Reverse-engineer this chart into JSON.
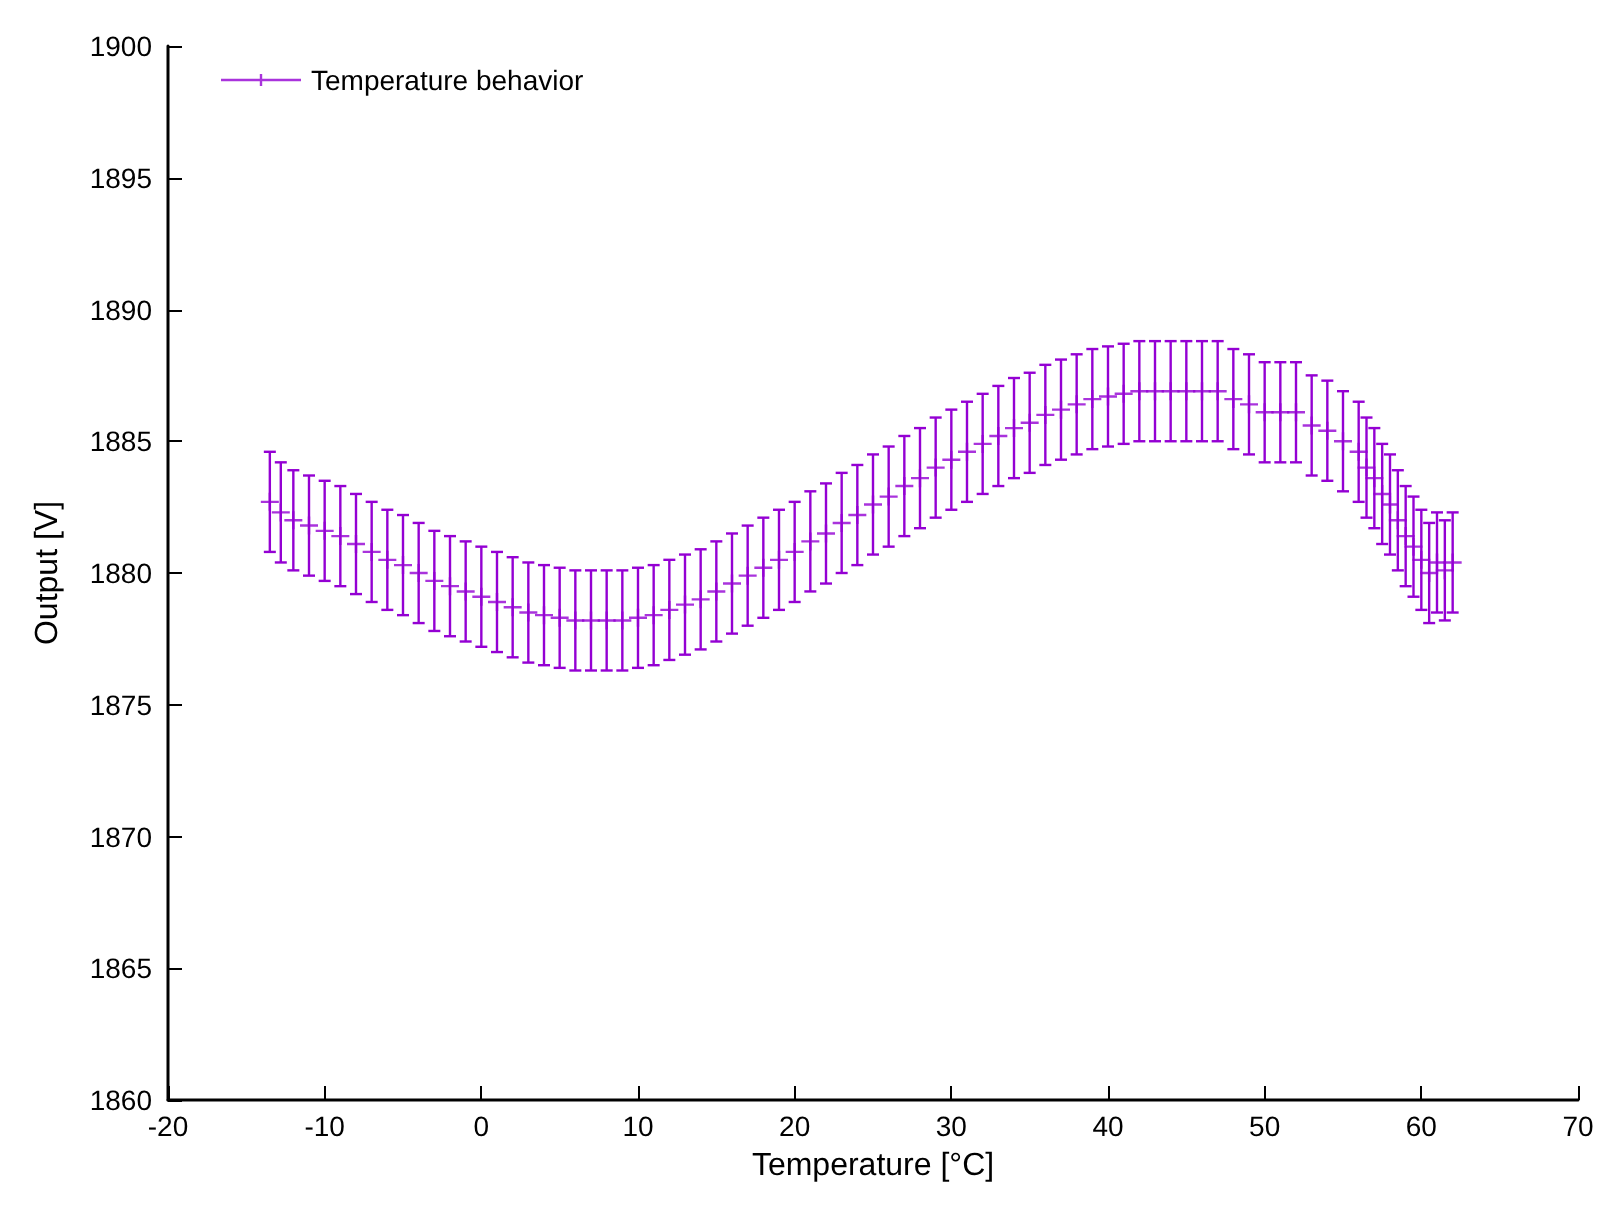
{
  "chart_data": {
    "type": "scatter",
    "xlabel": "Temperature [°C]",
    "ylabel": "Output [V]",
    "xlim": [
      -20,
      70
    ],
    "xticks": [
      -20,
      -10,
      0,
      10,
      20,
      30,
      40,
      50,
      60,
      70
    ],
    "ylim": [
      1860,
      1900
    ],
    "yticks": [
      1860,
      1865,
      1870,
      1875,
      1880,
      1885,
      1890,
      1895,
      1900
    ],
    "grid": false,
    "legend": "top left",
    "marker": "cross",
    "x": [
      -13.5,
      -12.8,
      -12,
      -11,
      -10,
      -9,
      -8,
      -7,
      -6,
      -5,
      -4,
      -3,
      -2,
      -1,
      0,
      1,
      2,
      3,
      4,
      5,
      6,
      7,
      8,
      9,
      10,
      11,
      12,
      13,
      14,
      15,
      16,
      17,
      18,
      19,
      20,
      21,
      22,
      23,
      24,
      25,
      26,
      27,
      28,
      29,
      30,
      31,
      32,
      33,
      34,
      35,
      36,
      37,
      38,
      39,
      40,
      41,
      42,
      43,
      44,
      45,
      46,
      47,
      48,
      49,
      50,
      51,
      52,
      53,
      54,
      55,
      56,
      56.5,
      57,
      57.5,
      58,
      58.5,
      59,
      59.5,
      60,
      60.5,
      61,
      61.5,
      62
    ],
    "series": [
      {
        "name": "Temperature behavior",
        "color": "#9400d3",
        "values": [
          1882.7,
          1882.3,
          1882.0,
          1881.8,
          1881.6,
          1881.4,
          1881.1,
          1880.8,
          1880.5,
          1880.3,
          1880.0,
          1879.7,
          1879.5,
          1879.3,
          1879.1,
          1878.9,
          1878.7,
          1878.5,
          1878.4,
          1878.3,
          1878.2,
          1878.2,
          1878.2,
          1878.2,
          1878.3,
          1878.4,
          1878.6,
          1878.8,
          1879.0,
          1879.3,
          1879.6,
          1879.9,
          1880.2,
          1880.5,
          1880.8,
          1881.2,
          1881.5,
          1881.9,
          1882.2,
          1882.6,
          1882.9,
          1883.3,
          1883.6,
          1884.0,
          1884.3,
          1884.6,
          1884.9,
          1885.2,
          1885.5,
          1885.7,
          1886.0,
          1886.2,
          1886.4,
          1886.6,
          1886.7,
          1886.8,
          1886.9,
          1886.9,
          1886.9,
          1886.9,
          1886.9,
          1886.9,
          1886.6,
          1886.4,
          1886.1,
          1886.1,
          1886.1,
          1885.6,
          1885.4,
          1885.0,
          1884.6,
          1884.0,
          1883.6,
          1883.0,
          1882.6,
          1882.0,
          1881.4,
          1881.0,
          1880.5,
          1880.0,
          1880.4,
          1880.1,
          1880.4
        ],
        "errors": [
          1.9,
          1.9,
          1.9,
          1.9,
          1.9,
          1.9,
          1.9,
          1.9,
          1.9,
          1.9,
          1.9,
          1.9,
          1.9,
          1.9,
          1.9,
          1.9,
          1.9,
          1.9,
          1.9,
          1.9,
          1.9,
          1.9,
          1.9,
          1.9,
          1.9,
          1.9,
          1.9,
          1.9,
          1.9,
          1.9,
          1.9,
          1.9,
          1.9,
          1.9,
          1.9,
          1.9,
          1.9,
          1.9,
          1.9,
          1.9,
          1.9,
          1.9,
          1.9,
          1.9,
          1.9,
          1.9,
          1.9,
          1.9,
          1.9,
          1.9,
          1.9,
          1.9,
          1.9,
          1.9,
          1.9,
          1.9,
          1.9,
          1.9,
          1.9,
          1.9,
          1.9,
          1.9,
          1.9,
          1.9,
          1.9,
          1.9,
          1.9,
          1.9,
          1.9,
          1.9,
          1.9,
          1.9,
          1.9,
          1.9,
          1.9,
          1.9,
          1.9,
          1.9,
          1.9,
          1.9,
          1.9,
          1.9,
          1.9
        ]
      }
    ]
  }
}
